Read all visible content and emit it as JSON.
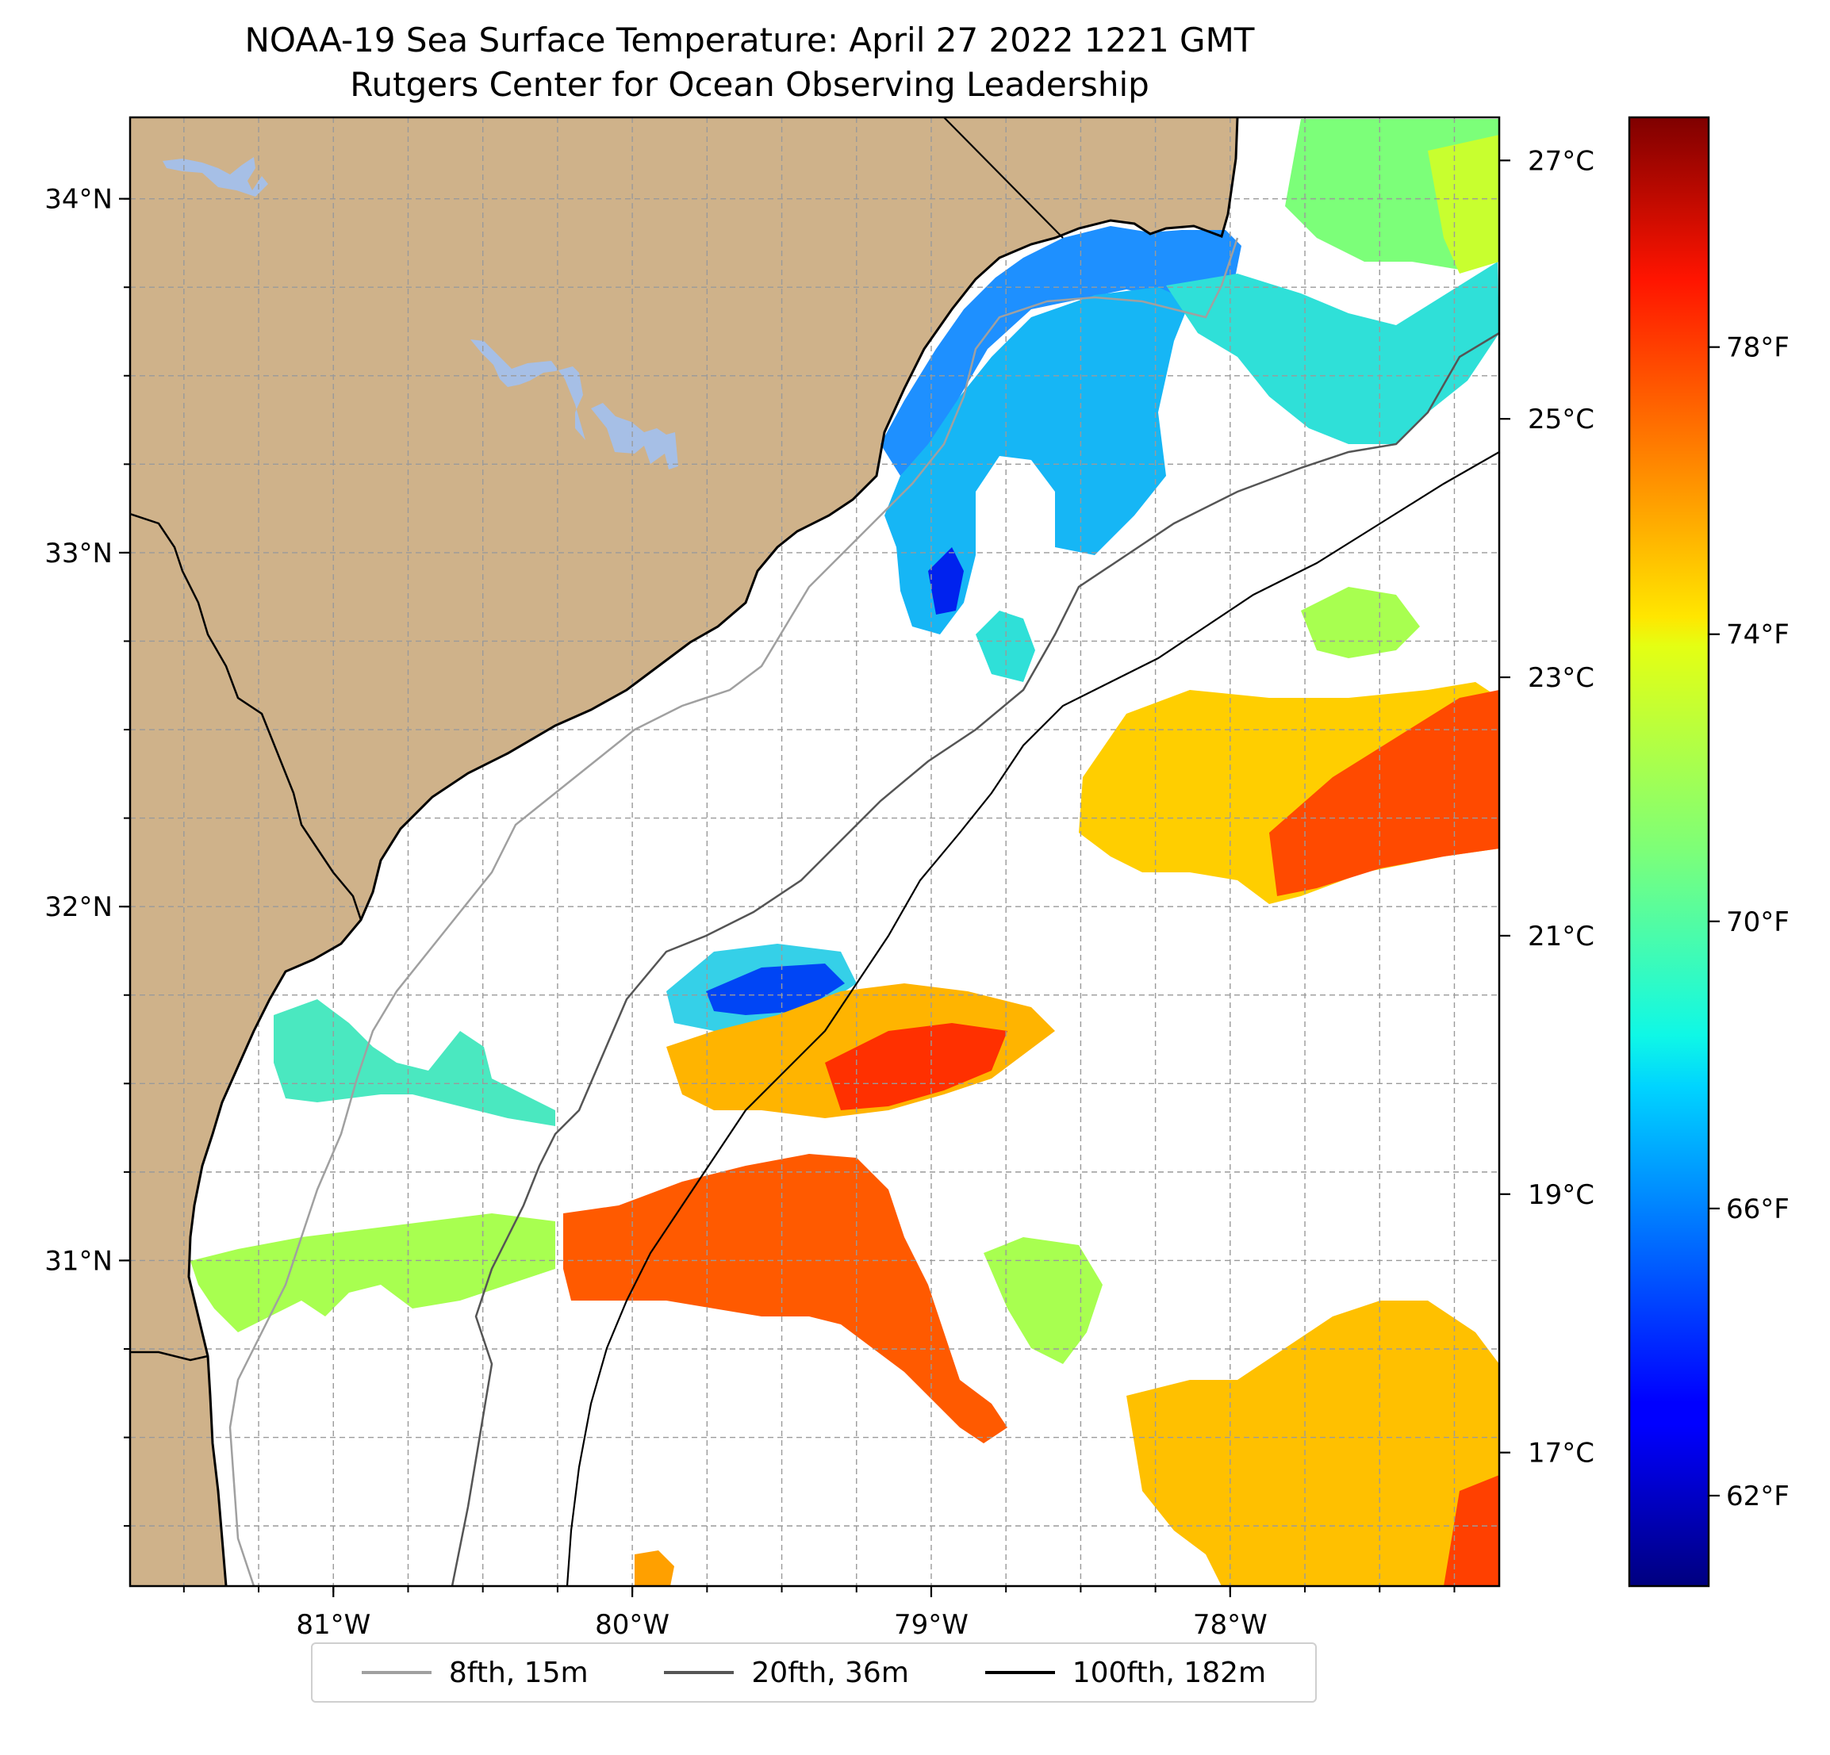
{
  "title": {
    "line1": "NOAA-19 Sea Surface Temperature: April 27 2022 1221 GMT",
    "line2": "Rutgers Center for Ocean Observing Leadership"
  },
  "map": {
    "lon_range": [
      -81.68,
      -77.1
    ],
    "lat_range": [
      30.08,
      34.23
    ],
    "lon_ticks": [
      {
        "value": -81,
        "label": "81°W"
      },
      {
        "value": -80,
        "label": "80°W"
      },
      {
        "value": -79,
        "label": "79°W"
      },
      {
        "value": -78,
        "label": "78°W"
      }
    ],
    "lat_ticks": [
      {
        "value": 31,
        "label": "31°N"
      },
      {
        "value": 32,
        "label": "32°N"
      },
      {
        "value": 33,
        "label": "33°N"
      },
      {
        "value": 34,
        "label": "34°N"
      }
    ],
    "minor_lon_step": 0.25,
    "minor_lat_step": 0.25,
    "gridlines": "dashed",
    "colors": {
      "land": "#cfb28a",
      "lakes": "#a6bfe6",
      "ocean_nodata": "#ffffff",
      "coastline": "#000000",
      "isobath_8fth": "#a0a0a0",
      "isobath_20fth": "#555555",
      "isobath_100fth": "#000000"
    }
  },
  "colorbar": {
    "colormap": "jet",
    "celsius_ticks": [
      {
        "value": 27,
        "label": "27°C"
      },
      {
        "value": 25,
        "label": "25°C"
      },
      {
        "value": 23,
        "label": "23°C"
      },
      {
        "value": 21,
        "label": "21°C"
      },
      {
        "value": 19,
        "label": "19°C"
      },
      {
        "value": 17,
        "label": "17°C"
      }
    ],
    "fahrenheit_ticks": [
      {
        "value": 78,
        "label": "78°F"
      },
      {
        "value": 74,
        "label": "74°F"
      },
      {
        "value": 70,
        "label": "70°F"
      },
      {
        "value": 66,
        "label": "66°F"
      },
      {
        "value": 62,
        "label": "62°F"
      }
    ]
  },
  "legend": {
    "placement": "bottom-center",
    "entries": [
      {
        "label": "8fth, 15m",
        "color": "#a0a0a0"
      },
      {
        "label": "20fth, 36m",
        "color": "#555555"
      },
      {
        "label": "100fth, 182m",
        "color": "#000000"
      }
    ]
  }
}
